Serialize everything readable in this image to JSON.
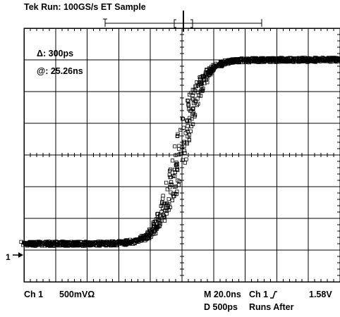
{
  "header": {
    "title": "Tek Run: 100GS/s ET Sample"
  },
  "cursor_readout": {
    "delta": "Δ: 300ps",
    "at": "@: 25.26ns"
  },
  "channel": {
    "label": "Ch 1",
    "scale": "500mVΩ",
    "marker": "1"
  },
  "timebase": {
    "main": "M 20.0ns",
    "delayed": "D  500ps"
  },
  "trigger": {
    "source": "Ch 1",
    "slope_icon": "rising-edge-icon",
    "level": "1.58V",
    "mode": "Runs After"
  },
  "colors": {
    "trace": "#000000",
    "graticule": "#000000",
    "background": "#ffffff"
  },
  "waveform_shape": {
    "type": "sigmoid-rising-edge",
    "low_level_div": -2.8,
    "high_level_div": 3.0,
    "edge_center_time_div": -0.05,
    "edge_width_div": 0.75,
    "trace_points": 1200
  }
}
